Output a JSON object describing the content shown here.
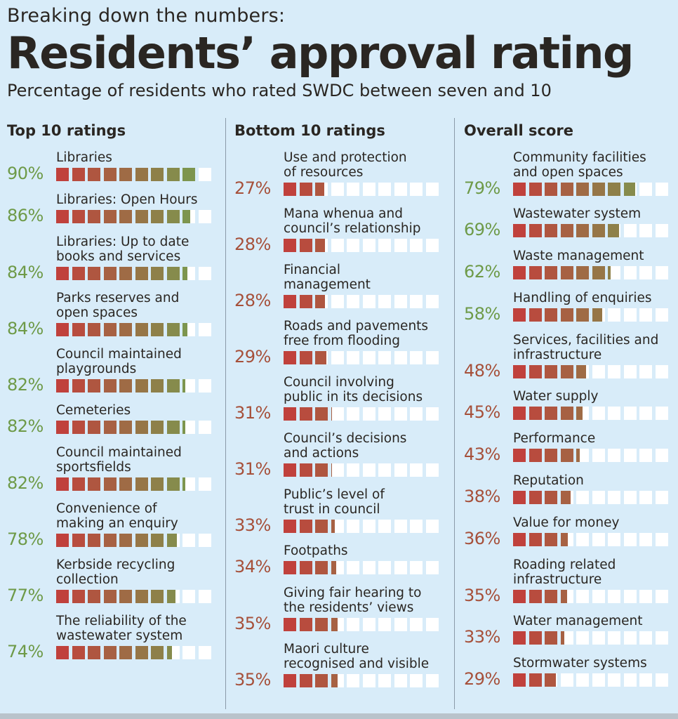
{
  "header": {
    "kicker": "Breaking down the numbers:",
    "title": "Residents’ approval rating",
    "subtitle": "Percentage of residents who rated SWDC between seven and 10"
  },
  "colors": {
    "low": "#c0413c",
    "high": "#75a050",
    "empty": "#ffffff",
    "pct_green": "#6e9a48",
    "pct_red": "#a6503a"
  },
  "chart_data": [
    {
      "type": "bar",
      "title": "Top 10 ratings",
      "unit": "%",
      "categories": [
        [
          "Libraries"
        ],
        [
          "Libraries: Open Hours"
        ],
        [
          "Libraries: Up to date",
          "books and services"
        ],
        [
          "Parks reserves and",
          "open spaces"
        ],
        [
          "Council maintained",
          "playgrounds"
        ],
        [
          "Cemeteries"
        ],
        [
          "Council maintained",
          "sportsfields"
        ],
        [
          "Convenience of",
          "making an enquiry"
        ],
        [
          "Kerbside recycling",
          "collection"
        ],
        [
          "The reliability of the",
          "wastewater system"
        ]
      ],
      "values": [
        90,
        86,
        84,
        84,
        82,
        82,
        82,
        78,
        77,
        74
      ],
      "labels": [
        "90%",
        "86%",
        "84%",
        "84%",
        "82%",
        "82%",
        "82%",
        "78%",
        "77%",
        "74%"
      ],
      "ylim": [
        0,
        100
      ]
    },
    {
      "type": "bar",
      "title": "Bottom 10 ratings",
      "unit": "%",
      "categories": [
        [
          "Use and protection",
          "of resources"
        ],
        [
          "Mana whenua and",
          "council’s relationship"
        ],
        [
          "Financial",
          "management"
        ],
        [
          "Roads and pavements",
          "free from flooding"
        ],
        [
          "Council involving",
          "public in its decisions"
        ],
        [
          "Council’s decisions",
          "and actions"
        ],
        [
          "Public’s level of",
          "trust in council"
        ],
        [
          "Footpaths"
        ],
        [
          "Giving fair hearing to",
          "the residents’ views"
        ],
        [
          "Maori culture",
          "recognised and visible"
        ]
      ],
      "values": [
        27,
        28,
        28,
        29,
        31,
        31,
        33,
        34,
        35,
        35
      ],
      "labels": [
        "27%",
        "28%",
        "28%",
        "29%",
        "31%",
        "31%",
        "33%",
        "34%",
        "35%",
        "35%"
      ],
      "ylim": [
        0,
        100
      ]
    },
    {
      "type": "bar",
      "title": "Overall score",
      "unit": "%",
      "categories": [
        [
          "Community facilities",
          "and open spaces"
        ],
        [
          "Wastewater system"
        ],
        [
          "Waste management"
        ],
        [
          "Handling of enquiries"
        ],
        [
          "Services, facilities and",
          "infrastructure"
        ],
        [
          "Water supply"
        ],
        [
          "Performance"
        ],
        [
          "Reputation"
        ],
        [
          "Value for money"
        ],
        [
          "Roading related",
          "infrastructure"
        ],
        [
          "Water management"
        ],
        [
          "Stormwater systems"
        ]
      ],
      "values": [
        79,
        69,
        62,
        58,
        48,
        45,
        43,
        38,
        36,
        35,
        33,
        29
      ],
      "labels": [
        "79%",
        "69%",
        "62%",
        "58%",
        "48%",
        "45%",
        "43%",
        "38%",
        "36%",
        "35%",
        "33%",
        "29%"
      ],
      "ylim": [
        0,
        100
      ]
    }
  ]
}
